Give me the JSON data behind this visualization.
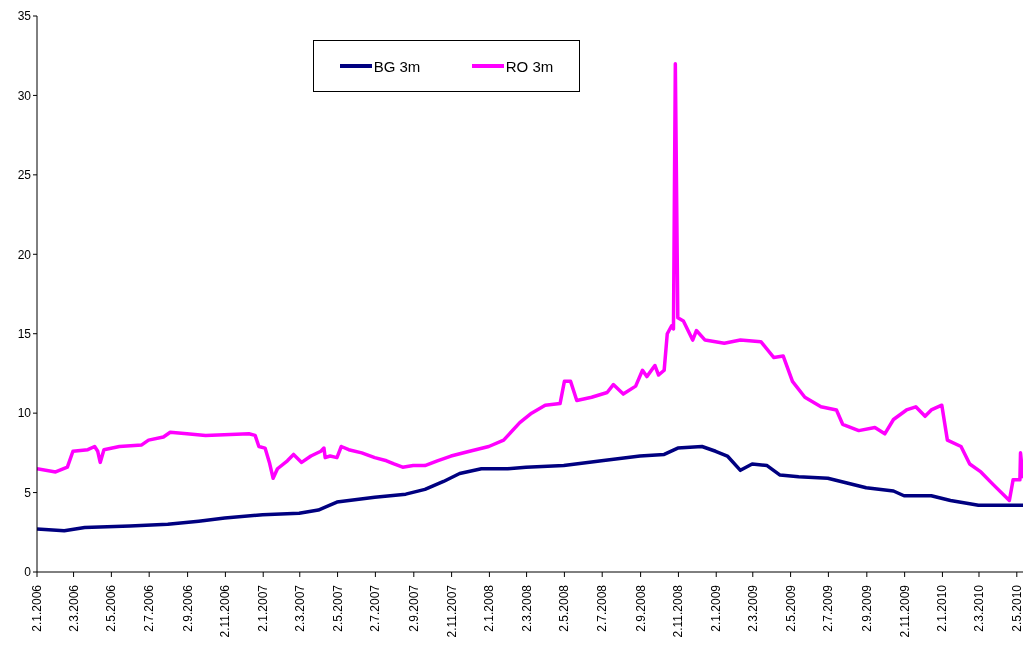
{
  "chart_data": {
    "type": "line",
    "xlim": [
      "2006-01-02",
      "2010-05-12"
    ],
    "xticks": [
      {
        "value": "2006-01-02",
        "label": "2.1.2006"
      },
      {
        "value": "2006-03-02",
        "label": "2.3.2006"
      },
      {
        "value": "2006-05-02",
        "label": "2.5.2006"
      },
      {
        "value": "2006-07-02",
        "label": "2.7.2006"
      },
      {
        "value": "2006-09-02",
        "label": "2.9.2006"
      },
      {
        "value": "2006-11-02",
        "label": "2.11.2006"
      },
      {
        "value": "2007-01-02",
        "label": "2.1.2007"
      },
      {
        "value": "2007-03-02",
        "label": "2.3.2007"
      },
      {
        "value": "2007-05-02",
        "label": "2.5.2007"
      },
      {
        "value": "2007-07-02",
        "label": "2.7.2007"
      },
      {
        "value": "2007-09-02",
        "label": "2.9.2007"
      },
      {
        "value": "2007-11-02",
        "label": "2.11.2007"
      },
      {
        "value": "2008-01-02",
        "label": "2.1.2008"
      },
      {
        "value": "2008-03-02",
        "label": "2.3.2008"
      },
      {
        "value": "2008-05-02",
        "label": "2.5.2008"
      },
      {
        "value": "2008-07-02",
        "label": "2.7.2008"
      },
      {
        "value": "2008-09-02",
        "label": "2.9.2008"
      },
      {
        "value": "2008-11-02",
        "label": "2.11.2008"
      },
      {
        "value": "2009-01-02",
        "label": "2.1.2009"
      },
      {
        "value": "2009-03-02",
        "label": "2.3.2009"
      },
      {
        "value": "2009-05-02",
        "label": "2.5.2009"
      },
      {
        "value": "2009-07-02",
        "label": "2.7.2009"
      },
      {
        "value": "2009-09-02",
        "label": "2.9.2009"
      },
      {
        "value": "2009-11-02",
        "label": "2.11.2009"
      },
      {
        "value": "2010-01-02",
        "label": "2.1.2010"
      },
      {
        "value": "2010-03-02",
        "label": "2.3.2010"
      },
      {
        "value": "2010-05-02",
        "label": "2.5.2010"
      }
    ],
    "ylim": [
      0,
      35
    ],
    "yticks": [
      0,
      5,
      10,
      15,
      20,
      25,
      30,
      35
    ],
    "legend": "top",
    "series": [
      {
        "name": "BG 3m",
        "color": "#000080",
        "x": [
          "2006-01-02",
          "2006-02-15",
          "2006-03-20",
          "2006-06-01",
          "2006-08-01",
          "2006-09-20",
          "2006-11-01",
          "2007-01-01",
          "2007-03-01",
          "2007-04-01",
          "2007-05-01",
          "2007-07-01",
          "2007-08-20",
          "2007-09-20",
          "2007-10-20",
          "2007-11-15",
          "2007-12-20",
          "2008-02-01",
          "2008-03-01",
          "2008-05-01",
          "2008-07-01",
          "2008-09-01",
          "2008-10-10",
          "2008-11-01",
          "2008-12-10",
          "2009-01-01",
          "2009-01-20",
          "2009-02-10",
          "2009-03-01",
          "2009-03-25",
          "2009-04-15",
          "2009-05-15",
          "2009-07-01",
          "2009-08-01",
          "2009-09-01",
          "2009-10-15",
          "2009-11-01",
          "2009-12-15",
          "2010-01-15",
          "2010-02-15",
          "2010-03-01",
          "2010-05-12"
        ],
        "values": [
          2.7,
          2.6,
          2.8,
          2.9,
          3.0,
          3.2,
          3.4,
          3.6,
          3.7,
          3.9,
          4.4,
          4.7,
          4.9,
          5.2,
          5.7,
          6.2,
          6.5,
          6.5,
          6.6,
          6.7,
          7.0,
          7.3,
          7.4,
          7.8,
          7.9,
          7.6,
          7.3,
          6.4,
          6.8,
          6.7,
          6.1,
          6.0,
          5.9,
          5.6,
          5.3,
          5.1,
          4.8,
          4.8,
          4.5,
          4.3,
          4.2,
          4.2
        ]
      },
      {
        "name": "RO 3m",
        "color": "#ff00ff",
        "x": [
          "2006-01-02",
          "2006-02-01",
          "2006-02-20",
          "2006-03-01",
          "2006-03-25",
          "2006-04-05",
          "2006-04-10",
          "2006-04-14",
          "2006-04-20",
          "2006-05-15",
          "2006-06-20",
          "2006-07-01",
          "2006-07-25",
          "2006-08-05",
          "2006-09-01",
          "2006-10-01",
          "2006-12-10",
          "2006-12-20",
          "2006-12-26",
          "2007-01-05",
          "2007-01-12",
          "2007-01-18",
          "2007-01-25",
          "2007-02-10",
          "2007-02-20",
          "2007-03-05",
          "2007-03-20",
          "2007-04-05",
          "2007-04-10",
          "2007-04-12",
          "2007-04-20",
          "2007-05-01",
          "2007-05-08",
          "2007-05-20",
          "2007-06-10",
          "2007-07-01",
          "2007-07-20",
          "2007-08-01",
          "2007-08-15",
          "2007-09-01",
          "2007-09-20",
          "2007-10-10",
          "2007-11-01",
          "2007-12-01",
          "2008-01-01",
          "2008-01-25",
          "2008-02-20",
          "2008-03-10",
          "2008-04-01",
          "2008-04-25",
          "2008-05-02",
          "2008-05-12",
          "2008-05-22",
          "2008-06-15",
          "2008-07-10",
          "2008-07-20",
          "2008-08-05",
          "2008-08-25",
          "2008-09-05",
          "2008-09-12",
          "2008-09-25",
          "2008-10-01",
          "2008-10-10",
          "2008-10-15",
          "2008-10-22",
          "2008-10-25",
          "2008-10-28",
          "2008-11-01",
          "2008-11-10",
          "2008-11-25",
          "2008-12-01",
          "2008-12-15",
          "2009-01-15",
          "2009-02-10",
          "2009-03-15",
          "2009-04-05",
          "2009-04-20",
          "2009-05-05",
          "2009-05-25",
          "2009-06-20",
          "2009-07-15",
          "2009-07-25",
          "2009-08-20",
          "2009-09-15",
          "2009-10-01",
          "2009-10-15",
          "2009-11-05",
          "2009-11-20",
          "2009-12-05",
          "2009-12-15",
          "2010-01-01",
          "2010-01-10",
          "2010-02-01",
          "2010-02-15",
          "2010-03-05",
          "2010-03-25",
          "2010-04-20",
          "2010-04-26",
          "2010-05-07",
          "2010-05-08",
          "2010-05-12"
        ],
        "values": [
          6.5,
          6.3,
          6.6,
          7.6,
          7.7,
          7.9,
          7.6,
          6.9,
          7.7,
          7.9,
          8.0,
          8.3,
          8.5,
          8.8,
          8.7,
          8.6,
          8.7,
          8.6,
          7.9,
          7.8,
          6.9,
          5.9,
          6.5,
          7.0,
          7.4,
          6.9,
          7.3,
          7.6,
          7.8,
          7.2,
          7.3,
          7.2,
          7.9,
          7.7,
          7.5,
          7.2,
          7.0,
          6.8,
          6.6,
          6.7,
          6.7,
          7.0,
          7.3,
          7.6,
          7.9,
          8.3,
          9.4,
          10.0,
          10.5,
          10.6,
          12.0,
          12.0,
          10.8,
          11.0,
          11.3,
          11.8,
          11.2,
          11.7,
          12.7,
          12.3,
          13.0,
          12.4,
          12.7,
          15.0,
          15.5,
          15.3,
          32.0,
          16.0,
          15.8,
          14.6,
          15.2,
          14.6,
          14.4,
          14.6,
          14.5,
          13.5,
          13.6,
          12.0,
          11.0,
          10.4,
          10.2,
          9.3,
          8.9,
          9.1,
          8.7,
          9.6,
          10.2,
          10.4,
          9.8,
          10.2,
          10.5,
          8.3,
          7.9,
          6.8,
          6.3,
          5.5,
          4.5,
          5.8,
          5.8,
          7.5,
          5.9
        ]
      }
    ]
  }
}
